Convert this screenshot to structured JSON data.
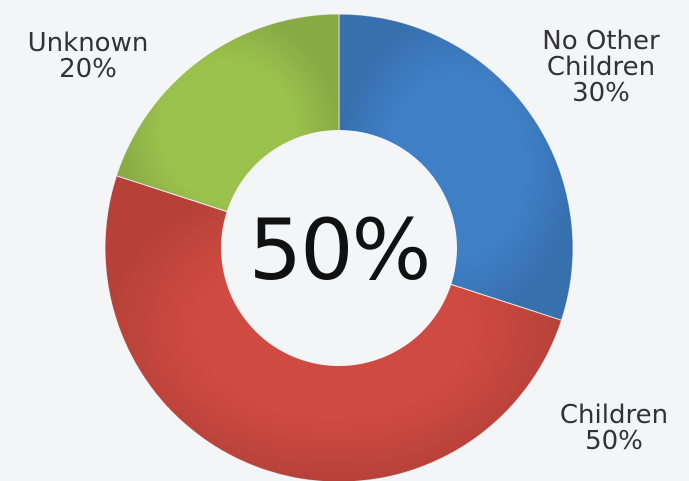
{
  "chart_data": {
    "type": "pie",
    "donut": true,
    "center_label": "50%",
    "slices": [
      {
        "name_lines": [
          "No Other",
          "Children"
        ],
        "label": "No Other Children",
        "value": 30,
        "value_label": "30%",
        "color": "#3f7fc6"
      },
      {
        "name_lines": [
          "Children"
        ],
        "label": "Children",
        "value": 50,
        "value_label": "50%",
        "color": "#cf4a40"
      },
      {
        "name_lines": [
          "Unknown"
        ],
        "label": "Unknown",
        "value": 20,
        "value_label": "20%",
        "color": "#9bc14d"
      }
    ]
  }
}
